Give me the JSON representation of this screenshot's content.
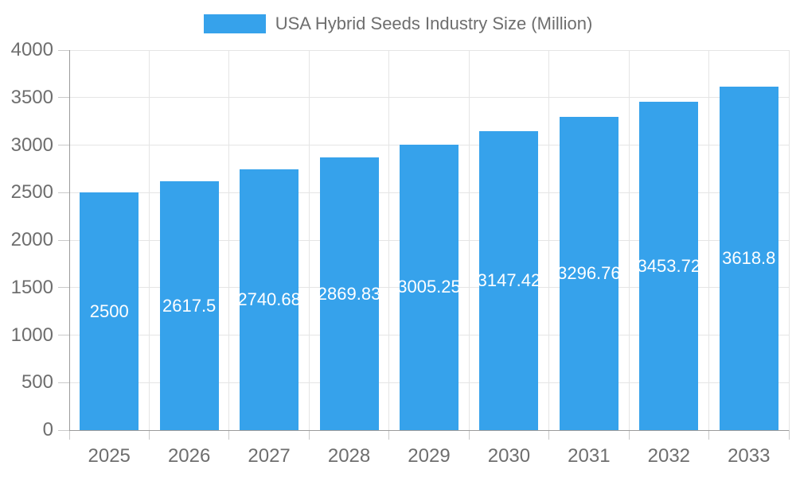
{
  "legend": {
    "swatch_color": "#36A2EB"
  },
  "colors": {
    "bar": "#36A2EB",
    "axis_text": "#6e6e6e",
    "bar_label_text": "#ffffff",
    "gridline": "#e5e5e5",
    "tick": "#c9c9c9",
    "axis_line": "#9b9b9b",
    "background": "#ffffff"
  },
  "chart_data": {
    "type": "bar",
    "title": "USA Hybrid Seeds Industry Size (Million)",
    "xlabel": "",
    "ylabel": "",
    "categories": [
      "2025",
      "2026",
      "2027",
      "2028",
      "2029",
      "2030",
      "2031",
      "2032",
      "2033"
    ],
    "values": [
      2500,
      2617.5,
      2740.68,
      2869.83,
      3005.25,
      3147.42,
      3296.76,
      3453.72,
      3618.8
    ],
    "bar_labels": [
      "2500",
      "2617.5",
      "2740.68",
      "2869.83",
      "3005.25",
      "3147.42",
      "3296.76",
      "3453.72",
      "3618.8"
    ],
    "ylim": [
      0,
      4000
    ],
    "ytick_step": 500,
    "ytick_labels": [
      "0",
      "500",
      "1000",
      "1500",
      "2000",
      "2500",
      "3000",
      "3500",
      "4000"
    ],
    "grid": true,
    "legend_position": "top"
  }
}
